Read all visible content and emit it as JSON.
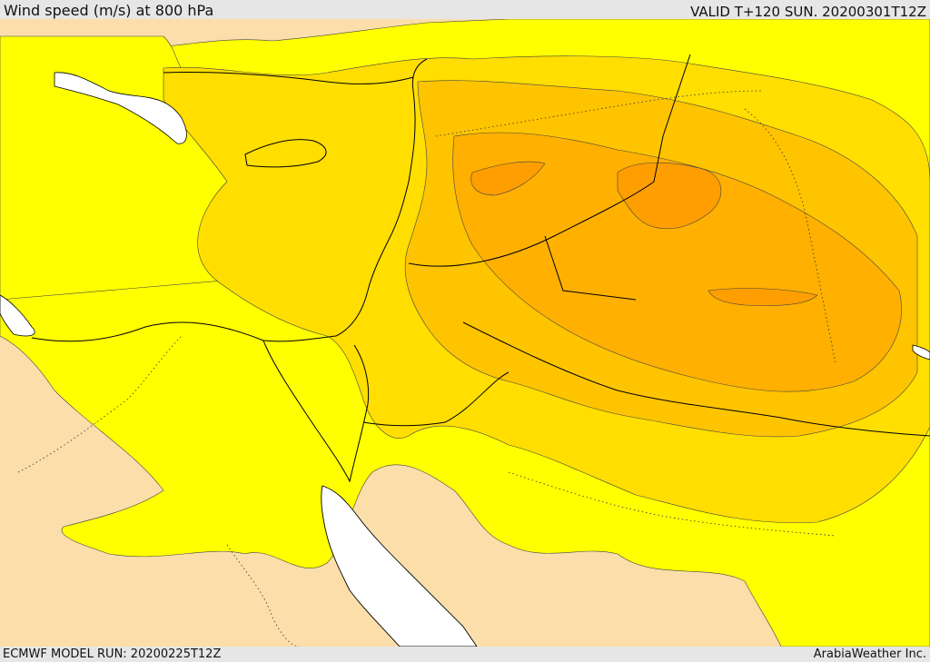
{
  "header": {
    "title": "Wind speed (m/s) at 800 hPa",
    "valid": "VALID T+120 SUN. 20200301T12Z"
  },
  "footer": {
    "model_run": "ECMWF MODEL RUN: 20200225T12Z",
    "credit": "ArabiaWeather Inc."
  },
  "colors": {
    "land_low": "#fbdeaa",
    "level1": "#ffff00",
    "level2": "#ffde00",
    "level3": "#ffc400",
    "level4": "#ffb000",
    "level5": "#ff9e00",
    "sea": "#ffffff",
    "border": "#000000"
  }
}
